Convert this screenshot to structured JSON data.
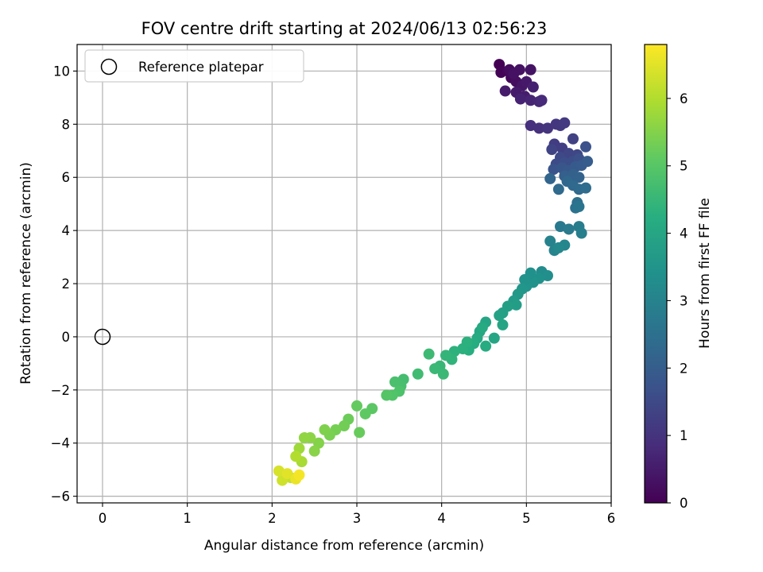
{
  "chart_data": {
    "type": "scatter",
    "title": "FOV centre drift starting at 2024/06/13 02:56:23",
    "xlabel": "Angular distance from reference (arcmin)",
    "ylabel": "Rotation from reference (arcmin)",
    "xlim": [
      -0.3,
      6.0
    ],
    "ylim": [
      -6.25,
      11.0
    ],
    "xticks": [
      0,
      1,
      2,
      3,
      4,
      5,
      6
    ],
    "yticks": [
      -6,
      -4,
      -2,
      0,
      2,
      4,
      6,
      8,
      10
    ],
    "grid": true,
    "legend": {
      "placement": "upper-left",
      "entries": [
        "Reference platepar"
      ]
    },
    "reference_point": {
      "x": 0,
      "y": 0
    },
    "colorbar": {
      "label": "Hours from first FF file",
      "range": [
        0,
        6.8
      ],
      "ticks": [
        0,
        1,
        2,
        3,
        4,
        5,
        6
      ],
      "colormap": "viridis"
    },
    "points": [
      {
        "x": 4.68,
        "y": 10.25,
        "t": 0.0
      },
      {
        "x": 4.7,
        "y": 9.95,
        "t": 0.05
      },
      {
        "x": 4.78,
        "y": 10.0,
        "t": 0.1
      },
      {
        "x": 4.82,
        "y": 9.75,
        "t": 0.15
      },
      {
        "x": 4.8,
        "y": 10.05,
        "t": 0.2
      },
      {
        "x": 4.88,
        "y": 9.6,
        "t": 0.25
      },
      {
        "x": 4.92,
        "y": 10.05,
        "t": 0.3
      },
      {
        "x": 4.85,
        "y": 9.9,
        "t": 0.3
      },
      {
        "x": 5.05,
        "y": 10.05,
        "t": 0.35
      },
      {
        "x": 4.95,
        "y": 9.45,
        "t": 0.4
      },
      {
        "x": 5.0,
        "y": 9.6,
        "t": 0.45
      },
      {
        "x": 4.75,
        "y": 9.25,
        "t": 0.5
      },
      {
        "x": 4.88,
        "y": 9.2,
        "t": 0.5
      },
      {
        "x": 4.98,
        "y": 9.05,
        "t": 0.55
      },
      {
        "x": 5.08,
        "y": 9.4,
        "t": 0.6
      },
      {
        "x": 4.93,
        "y": 8.95,
        "t": 0.65
      },
      {
        "x": 5.05,
        "y": 8.9,
        "t": 0.7
      },
      {
        "x": 5.15,
        "y": 8.85,
        "t": 0.75
      },
      {
        "x": 5.18,
        "y": 8.9,
        "t": 0.8
      },
      {
        "x": 5.05,
        "y": 7.95,
        "t": 0.9
      },
      {
        "x": 5.15,
        "y": 7.85,
        "t": 0.95
      },
      {
        "x": 5.25,
        "y": 7.85,
        "t": 1.0
      },
      {
        "x": 5.35,
        "y": 8.0,
        "t": 1.05
      },
      {
        "x": 5.4,
        "y": 7.95,
        "t": 1.1
      },
      {
        "x": 5.45,
        "y": 8.05,
        "t": 1.15
      },
      {
        "x": 5.33,
        "y": 7.25,
        "t": 1.2
      },
      {
        "x": 5.42,
        "y": 7.1,
        "t": 1.25
      },
      {
        "x": 5.55,
        "y": 7.45,
        "t": 1.3
      },
      {
        "x": 5.3,
        "y": 7.05,
        "t": 1.35
      },
      {
        "x": 5.5,
        "y": 6.9,
        "t": 1.4
      },
      {
        "x": 5.6,
        "y": 6.85,
        "t": 1.45
      },
      {
        "x": 5.4,
        "y": 6.75,
        "t": 1.5
      },
      {
        "x": 5.35,
        "y": 6.5,
        "t": 1.55
      },
      {
        "x": 5.45,
        "y": 6.55,
        "t": 1.6
      },
      {
        "x": 5.55,
        "y": 6.6,
        "t": 1.6
      },
      {
        "x": 5.62,
        "y": 6.7,
        "t": 1.65
      },
      {
        "x": 5.7,
        "y": 7.15,
        "t": 1.7
      },
      {
        "x": 5.32,
        "y": 6.3,
        "t": 1.75
      },
      {
        "x": 5.42,
        "y": 6.35,
        "t": 1.8
      },
      {
        "x": 5.5,
        "y": 6.25,
        "t": 1.85
      },
      {
        "x": 5.58,
        "y": 6.4,
        "t": 1.9
      },
      {
        "x": 5.65,
        "y": 6.45,
        "t": 1.95
      },
      {
        "x": 5.72,
        "y": 6.6,
        "t": 2.0
      },
      {
        "x": 5.45,
        "y": 6.05,
        "t": 2.05
      },
      {
        "x": 5.55,
        "y": 6.1,
        "t": 2.1
      },
      {
        "x": 5.62,
        "y": 6.0,
        "t": 2.15
      },
      {
        "x": 5.28,
        "y": 5.95,
        "t": 2.2
      },
      {
        "x": 5.48,
        "y": 5.85,
        "t": 2.25
      },
      {
        "x": 5.55,
        "y": 5.7,
        "t": 2.3
      },
      {
        "x": 5.38,
        "y": 5.55,
        "t": 2.35
      },
      {
        "x": 5.62,
        "y": 5.55,
        "t": 2.35
      },
      {
        "x": 5.7,
        "y": 5.6,
        "t": 2.4
      },
      {
        "x": 5.6,
        "y": 5.05,
        "t": 2.5
      },
      {
        "x": 5.58,
        "y": 4.85,
        "t": 2.55
      },
      {
        "x": 5.62,
        "y": 4.9,
        "t": 2.6
      },
      {
        "x": 5.4,
        "y": 4.15,
        "t": 2.75
      },
      {
        "x": 5.5,
        "y": 4.05,
        "t": 2.8
      },
      {
        "x": 5.62,
        "y": 4.15,
        "t": 2.85
      },
      {
        "x": 5.65,
        "y": 3.9,
        "t": 2.9
      },
      {
        "x": 5.28,
        "y": 3.6,
        "t": 3.0
      },
      {
        "x": 5.33,
        "y": 3.25,
        "t": 3.05
      },
      {
        "x": 5.45,
        "y": 3.45,
        "t": 3.1
      },
      {
        "x": 5.38,
        "y": 3.35,
        "t": 3.15
      },
      {
        "x": 5.18,
        "y": 2.45,
        "t": 3.3
      },
      {
        "x": 5.25,
        "y": 2.3,
        "t": 3.35
      },
      {
        "x": 5.15,
        "y": 2.2,
        "t": 3.4
      },
      {
        "x": 5.08,
        "y": 2.05,
        "t": 3.45
      },
      {
        "x": 5.0,
        "y": 1.9,
        "t": 3.5
      },
      {
        "x": 5.05,
        "y": 2.4,
        "t": 3.4
      },
      {
        "x": 4.98,
        "y": 2.15,
        "t": 3.45
      },
      {
        "x": 4.95,
        "y": 1.8,
        "t": 3.55
      },
      {
        "x": 4.9,
        "y": 1.6,
        "t": 3.6
      },
      {
        "x": 4.85,
        "y": 1.35,
        "t": 3.7
      },
      {
        "x": 4.88,
        "y": 1.2,
        "t": 3.75
      },
      {
        "x": 4.78,
        "y": 1.15,
        "t": 3.8
      },
      {
        "x": 4.72,
        "y": 0.9,
        "t": 3.85
      },
      {
        "x": 4.68,
        "y": 0.8,
        "t": 3.9
      },
      {
        "x": 4.72,
        "y": 0.45,
        "t": 3.95
      },
      {
        "x": 4.62,
        "y": -0.05,
        "t": 4.0
      },
      {
        "x": 4.52,
        "y": 0.55,
        "t": 4.0
      },
      {
        "x": 4.45,
        "y": 0.2,
        "t": 4.05
      },
      {
        "x": 4.42,
        "y": -0.05,
        "t": 4.1
      },
      {
        "x": 4.48,
        "y": 0.35,
        "t": 4.1
      },
      {
        "x": 4.52,
        "y": -0.35,
        "t": 4.15
      },
      {
        "x": 4.38,
        "y": -0.25,
        "t": 4.2
      },
      {
        "x": 4.32,
        "y": -0.5,
        "t": 4.25
      },
      {
        "x": 4.25,
        "y": -0.45,
        "t": 4.3
      },
      {
        "x": 4.3,
        "y": -0.2,
        "t": 4.3
      },
      {
        "x": 4.15,
        "y": -0.55,
        "t": 4.35
      },
      {
        "x": 4.12,
        "y": -0.85,
        "t": 4.4
      },
      {
        "x": 4.05,
        "y": -0.7,
        "t": 4.45
      },
      {
        "x": 3.98,
        "y": -1.1,
        "t": 4.5
      },
      {
        "x": 4.02,
        "y": -1.4,
        "t": 4.55
      },
      {
        "x": 3.92,
        "y": -1.2,
        "t": 4.55
      },
      {
        "x": 3.85,
        "y": -0.65,
        "t": 4.6
      },
      {
        "x": 3.72,
        "y": -1.4,
        "t": 4.65
      },
      {
        "x": 3.55,
        "y": -1.6,
        "t": 4.7
      },
      {
        "x": 3.52,
        "y": -1.85,
        "t": 4.75
      },
      {
        "x": 3.45,
        "y": -1.7,
        "t": 4.8
      },
      {
        "x": 3.5,
        "y": -2.05,
        "t": 4.85
      },
      {
        "x": 3.42,
        "y": -2.2,
        "t": 4.9
      },
      {
        "x": 3.35,
        "y": -2.2,
        "t": 4.95
      },
      {
        "x": 3.18,
        "y": -2.7,
        "t": 5.05
      },
      {
        "x": 3.1,
        "y": -2.9,
        "t": 5.1
      },
      {
        "x": 3.0,
        "y": -2.6,
        "t": 5.15
      },
      {
        "x": 3.03,
        "y": -3.6,
        "t": 5.2
      },
      {
        "x": 2.9,
        "y": -3.1,
        "t": 5.25
      },
      {
        "x": 2.85,
        "y": -3.35,
        "t": 5.3
      },
      {
        "x": 2.75,
        "y": -3.5,
        "t": 5.35
      },
      {
        "x": 2.68,
        "y": -3.7,
        "t": 5.4
      },
      {
        "x": 2.62,
        "y": -3.5,
        "t": 5.45
      },
      {
        "x": 2.55,
        "y": -4.0,
        "t": 5.5
      },
      {
        "x": 2.5,
        "y": -4.3,
        "t": 5.55
      },
      {
        "x": 2.45,
        "y": -3.8,
        "t": 5.6
      },
      {
        "x": 2.38,
        "y": -3.8,
        "t": 5.65
      },
      {
        "x": 2.32,
        "y": -4.2,
        "t": 5.8
      },
      {
        "x": 2.35,
        "y": -4.7,
        "t": 5.9
      },
      {
        "x": 2.28,
        "y": -4.5,
        "t": 6.0
      },
      {
        "x": 2.22,
        "y": -5.3,
        "t": 6.2
      },
      {
        "x": 2.12,
        "y": -5.4,
        "t": 6.3
      },
      {
        "x": 2.08,
        "y": -5.05,
        "t": 6.4
      },
      {
        "x": 2.18,
        "y": -5.15,
        "t": 6.5
      },
      {
        "x": 2.28,
        "y": -5.35,
        "t": 6.6
      },
      {
        "x": 2.32,
        "y": -5.2,
        "t": 6.7
      }
    ]
  }
}
